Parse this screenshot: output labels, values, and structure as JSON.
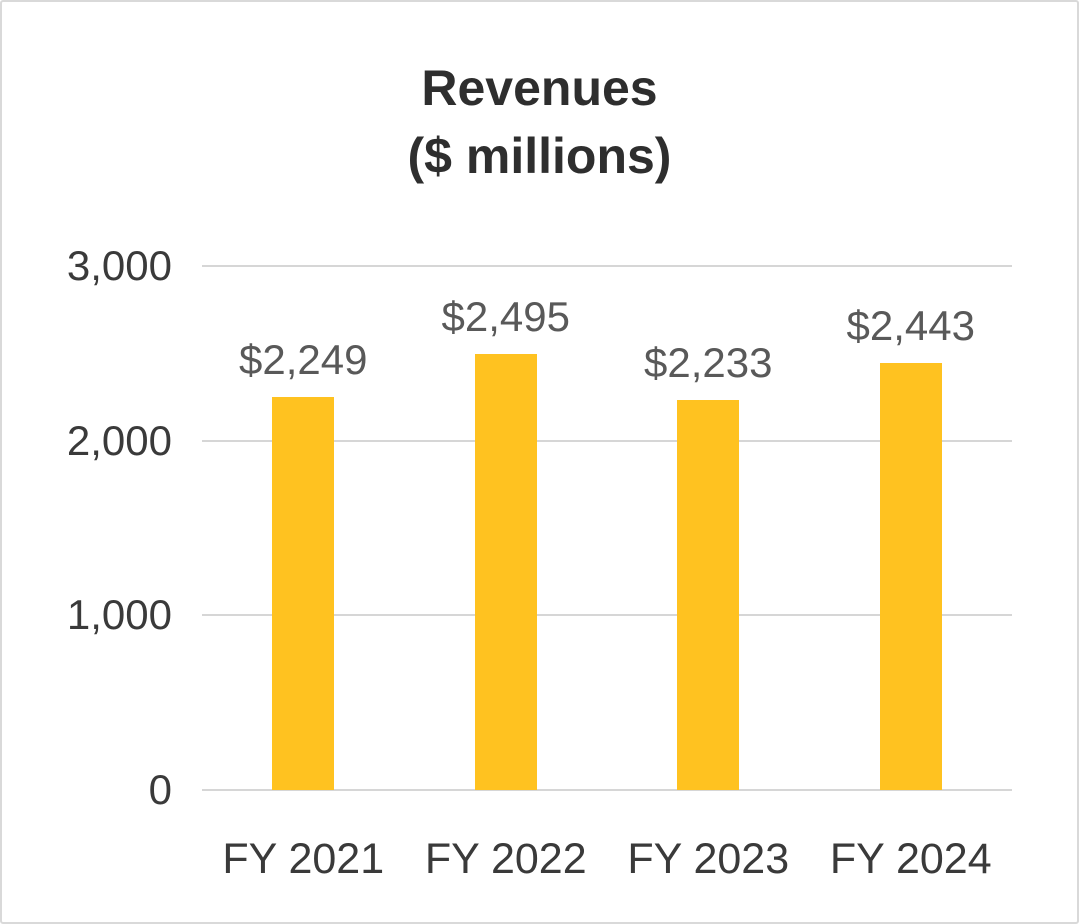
{
  "chart_data": {
    "type": "bar",
    "title": "Revenues",
    "subtitle": "($ millions)",
    "categories": [
      "FY 2021",
      "FY 2022",
      "FY 2023",
      "FY 2024"
    ],
    "values": [
      2249,
      2495,
      2233,
      2443
    ],
    "data_labels": [
      "$2,249",
      "$2,495",
      "$2,233",
      "$2,443"
    ],
    "ylim": [
      0,
      3000
    ],
    "yticks": [
      0,
      1000,
      2000,
      3000
    ],
    "ytick_labels": [
      "0",
      "1,000",
      "2,000",
      "3,000"
    ],
    "xlabel": "",
    "ylabel": "",
    "grid": true,
    "legend": "none",
    "bar_color": "#FFC220",
    "data_label_color": "#595959",
    "axis_text_color": "#3a3a3a",
    "gridline_color": "#d6d6d6"
  }
}
